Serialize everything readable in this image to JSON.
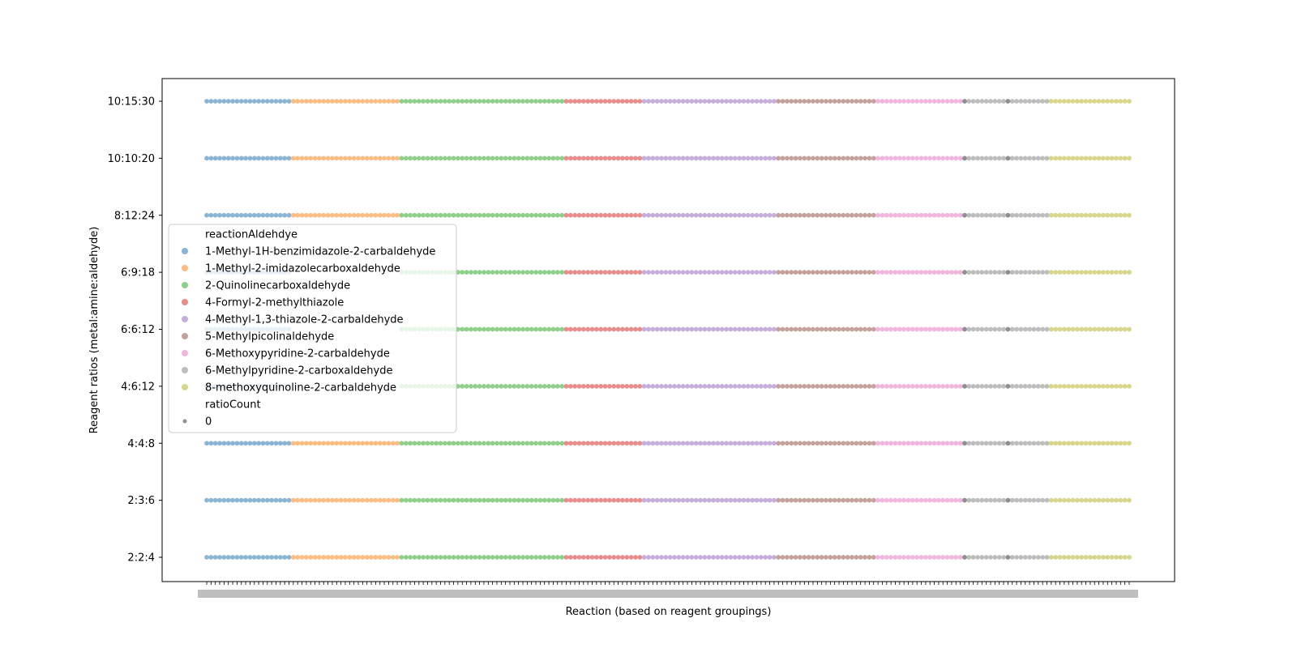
{
  "chart_data": {
    "type": "scatter",
    "title": "",
    "xlabel": "Reaction (based on reagent groupings)",
    "ylabel": "Reagent ratios (metal:amine:aldehyde)",
    "y_categories": [
      "2:2:4",
      "2:3:6",
      "4:4:8",
      "4:6:12",
      "6:6:12",
      "6:9:18",
      "8:12:24",
      "10:10:20",
      "10:15:30"
    ],
    "x_tick_labels_legible": false,
    "grid": false,
    "series": [
      {
        "name": "1-Methyl-1H-benzimidazole-2-carbaldehyde",
        "color": "#8ab4d4",
        "x_range": [
          1,
          20
        ],
        "y": [
          "2:2:4",
          "2:3:6",
          "4:4:8",
          "4:6:12",
          "6:6:12",
          "6:9:18",
          "8:12:24",
          "10:10:20",
          "10:15:30"
        ]
      },
      {
        "name": "1-Methyl-2-imidazolecarboxaldehyde",
        "color": "#fdbc82",
        "x_range": [
          21,
          45
        ],
        "y": [
          "2:2:4",
          "2:3:6",
          "4:4:8",
          "4:6:12",
          "6:6:12",
          "6:9:18",
          "8:12:24",
          "10:10:20",
          "10:15:30"
        ]
      },
      {
        "name": "2-Quinolinecarboxaldehyde",
        "color": "#8ecf8a",
        "x_range": [
          46,
          83
        ],
        "y": [
          "2:2:4",
          "2:3:6",
          "4:4:8",
          "4:6:12",
          "6:6:12",
          "6:9:18",
          "8:12:24",
          "10:10:20",
          "10:15:30"
        ]
      },
      {
        "name": "4-Formyl-2-methylthiazole",
        "color": "#e88c8c",
        "x_range": [
          84,
          101
        ],
        "y": [
          "2:2:4",
          "2:3:6",
          "4:4:8",
          "4:6:12",
          "6:6:12",
          "6:9:18",
          "8:12:24",
          "10:10:20",
          "10:15:30"
        ]
      },
      {
        "name": "4-Methyl-1,3-thiazole-2-carbaldehyde",
        "color": "#c5aedb",
        "x_range": [
          102,
          132
        ],
        "y": [
          "2:2:4",
          "2:3:6",
          "4:4:8",
          "4:6:12",
          "6:6:12",
          "6:9:18",
          "8:12:24",
          "10:10:20",
          "10:15:30"
        ]
      },
      {
        "name": "5-Methylpicolinaldehyde",
        "color": "#c4a29b",
        "x_range": [
          133,
          155
        ],
        "y": [
          "2:2:4",
          "2:3:6",
          "4:4:8",
          "4:6:12",
          "6:6:12",
          "6:9:18",
          "8:12:24",
          "10:10:20",
          "10:15:30"
        ]
      },
      {
        "name": "6-Methoxypyridine-2-carbaldehyde",
        "color": "#f2b5de",
        "x_range": [
          156,
          175
        ],
        "y": [
          "2:2:4",
          "2:3:6",
          "4:4:8",
          "4:6:12",
          "6:6:12",
          "6:9:18",
          "8:12:24",
          "10:10:20",
          "10:15:30"
        ]
      },
      {
        "name": "6-Methylpyridine-2-carboxaldehyde",
        "color": "#bdbdbd",
        "x_range": [
          176,
          195
        ],
        "y": [
          "2:2:4",
          "2:3:6",
          "4:4:8",
          "4:6:12",
          "6:6:12",
          "6:9:18",
          "8:12:24",
          "10:10:20",
          "10:15:30"
        ]
      },
      {
        "name": "8-methoxyquinoline-2-carbaldehyde",
        "color": "#d7d68a",
        "x_range": [
          196,
          214
        ],
        "y": [
          "2:2:4",
          "2:3:6",
          "4:4:8",
          "4:6:12",
          "6:6:12",
          "6:9:18",
          "8:12:24",
          "10:10:20",
          "10:15:30"
        ]
      }
    ],
    "missing_points": [
      {
        "series": "1-Methyl-2-imidazolecarboxaldehyde",
        "y": [
          "4:6:12",
          "6:6:12",
          "6:9:18"
        ]
      }
    ],
    "gray_points": {
      "color": "#909090",
      "x": [
        176,
        186
      ],
      "y": [
        "2:2:4",
        "2:3:6",
        "4:4:8",
        "4:6:12",
        "6:6:12",
        "6:9:18",
        "8:12:24",
        "10:10:20",
        "10:15:30"
      ]
    },
    "legend": {
      "placement": "center-left",
      "hue_title": "reactionAldehdye",
      "size_title": "ratioCount",
      "size_entries": [
        {
          "label": "0",
          "color": "#909090"
        }
      ]
    },
    "x_range": [
      1,
      214
    ]
  }
}
